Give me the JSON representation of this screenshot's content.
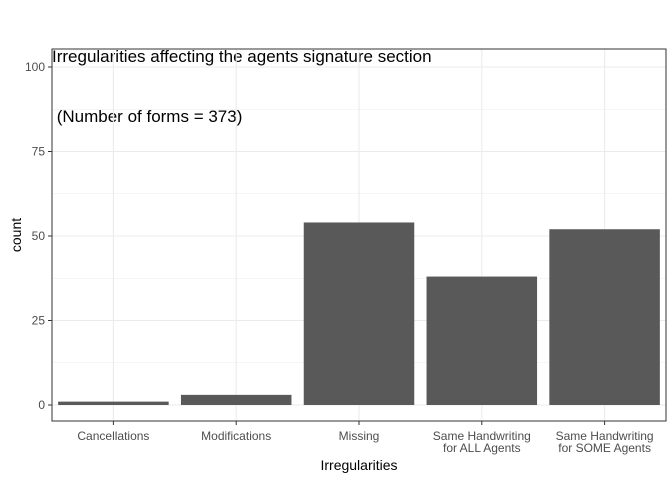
{
  "chart_data": {
    "type": "bar",
    "title_line1": "Irregularities affecting the agents signature section",
    "title_line2": " (Number of forms = 373)",
    "xlabel": "Irregularities",
    "ylabel": "count",
    "categories": [
      [
        "Cancellations"
      ],
      [
        "Modifications"
      ],
      [
        "Missing"
      ],
      [
        "Same Handwriting",
        "for ALL Agents"
      ],
      [
        "Same Handwriting",
        "for SOME Agents"
      ]
    ],
    "values": [
      1,
      3,
      54,
      38,
      52
    ],
    "ylim": [
      0,
      100
    ],
    "yticks": [
      0,
      25,
      50,
      75,
      100
    ],
    "grid": true,
    "bar_color": "#595959",
    "grid_color": "#ebebeb",
    "panel_border_color": "#333333"
  }
}
